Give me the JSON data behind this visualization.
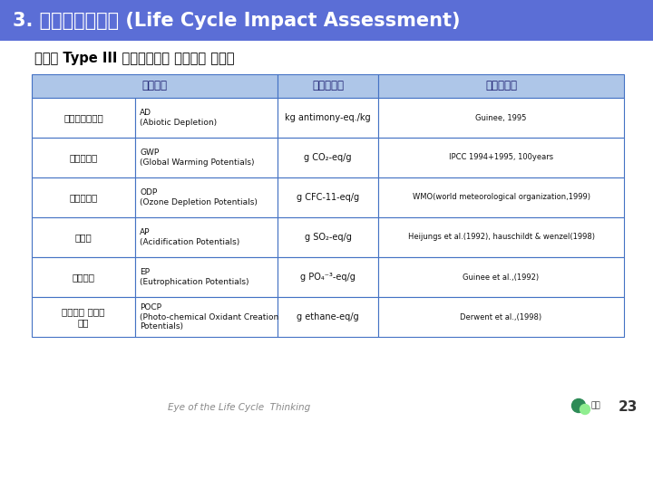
{
  "title": "3. 전과정영향평가 (Life Cycle Impact Assessment)",
  "subtitle": "환경부 Type III 환경성적표지 영향평가 방법론",
  "title_bg": "#5B6ED6",
  "title_color": "#FFFFFF",
  "header_bg": "#AEC6E8",
  "header_color": "#1A1A6E",
  "border_color": "#4472C4",
  "col_headers": [
    "영향범주",
    "특성화인자",
    "특성화모델"
  ],
  "rows": [
    {
      "category_kr": "자원고갈잠재량",
      "category_en": "AD\n(Abiotic Depletion)",
      "factor": "kg antimony-eq./kg",
      "model": "Guinee, 1995"
    },
    {
      "category_kr": "지구온난화",
      "category_en": "GWP\n(Global Warming Potentials)",
      "factor": "g CO₂-eq/g",
      "model": "IPCC 1994+1995, 100years"
    },
    {
      "category_kr": "오존층고갈",
      "category_en": "ODP\n(Ozone Depletion Potentials)",
      "factor": "g CFC-11-eq/g",
      "model": "WMO(world meteorological organization,1999)"
    },
    {
      "category_kr": "산성화",
      "category_en": "AP\n(Acidification Potentials)",
      "factor": "g SO₂-eq/g",
      "model": "Heijungs et al.(1992), hauschildt & wenzel(1998)"
    },
    {
      "category_kr": "부영양화",
      "category_en": "EP\n(Eutrophication Potentials)",
      "factor": "g PO₄⁻³-eq/g",
      "model": "Guinee et al.,(1992)"
    },
    {
      "category_kr": "광화학적 산화물\n생성",
      "category_en": "POCP\n(Photo-chemical Oxidant Creation\nPotentials)",
      "factor": "g ethane-eq/g",
      "model": "Derwent et al.,(1998)"
    }
  ],
  "footer_text": "Eye of the Life Cycle  Thinking",
  "page_num": "23",
  "logo_color1": "#2E8B57",
  "logo_color2": "#90EE90"
}
